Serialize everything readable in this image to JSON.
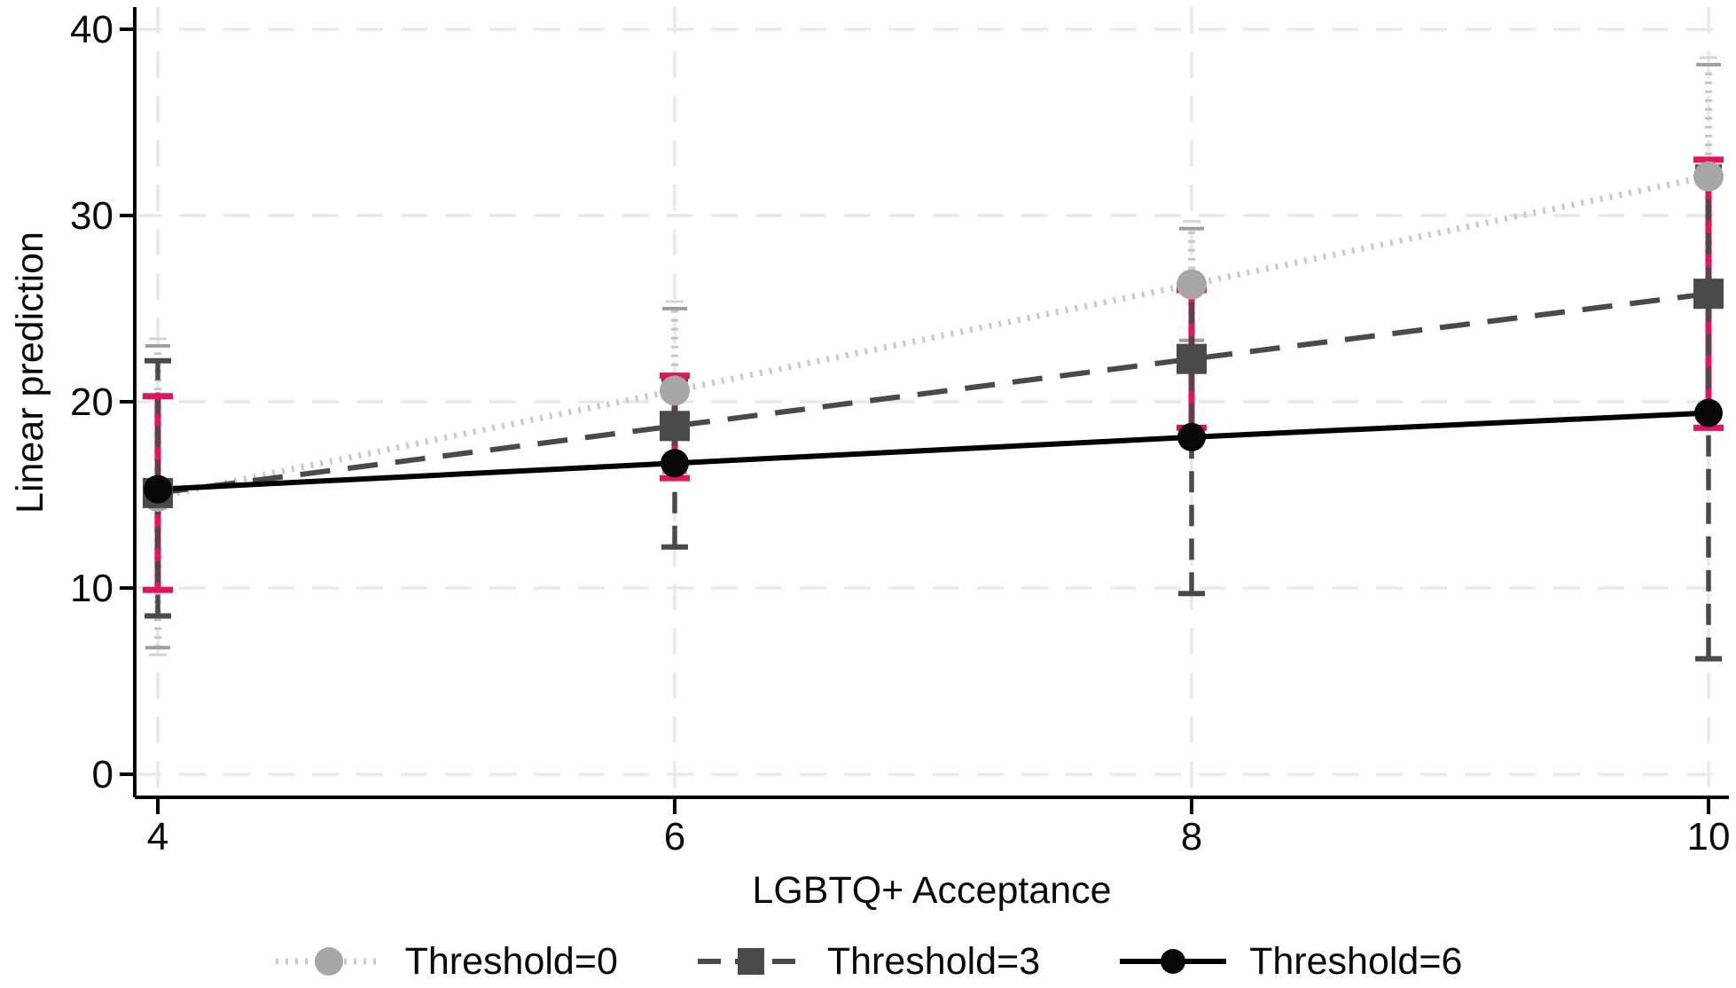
{
  "chart_data": {
    "type": "line",
    "title": "",
    "xlabel": "LGBTQ+ Acceptance",
    "ylabel": "Linear prediction",
    "x_ticks": [
      4,
      6,
      8,
      10
    ],
    "y_ticks": [
      0,
      10,
      20,
      30,
      40
    ],
    "xlim": [
      3.9,
      10.1
    ],
    "ylim": [
      -3,
      41
    ],
    "grid": true,
    "legend_position": "bottom",
    "x": [
      4,
      6,
      8,
      10
    ],
    "series": [
      {
        "name": "Threshold=0",
        "values": [
          14.9,
          20.6,
          26.3,
          32.1
        ],
        "ci_low": [
          6.8,
          16.2,
          23.3,
          26.1
        ],
        "ci_high": [
          23.0,
          25.0,
          29.3,
          38.1
        ],
        "line_style": "dotted",
        "marker": "circle",
        "line_color": "#c9c9c9",
        "marker_color": "#a6a6a6",
        "ci_color": "#c6c6c6",
        "ci_cap_color": "#9f9f9f",
        "ci_style": "dotted"
      },
      {
        "name": "Threshold=3",
        "values": [
          15.1,
          18.7,
          22.3,
          25.8
        ],
        "ci_low": [
          9.9,
          15.9,
          18.6,
          18.6
        ],
        "ci_high": [
          20.3,
          21.4,
          26.0,
          33.0
        ],
        "line_style": "dashed",
        "marker": "square",
        "line_color": "#4a4a4a",
        "marker_color": "#4a4a4a",
        "ci_color": "#e0145f",
        "ci_cap_color": "#e0145f",
        "ci_style": "solid"
      },
      {
        "name": "Threshold=6",
        "values": [
          15.3,
          16.7,
          18.1,
          19.4
        ],
        "ci_low": [
          8.5,
          12.2,
          9.7,
          6.2
        ],
        "ci_high": [
          22.2,
          21.2,
          26.5,
          32.6
        ],
        "line_style": "solid",
        "marker": "circle",
        "line_color": "#000000",
        "marker_color": "#070707",
        "ci_color": "#4a4a4a",
        "ci_cap_color": "#4a4a4a",
        "ci_style": "dashed"
      }
    ],
    "colors": {
      "background": "#ffffff",
      "axis": "#000000",
      "grid": "#e9e9e9"
    }
  }
}
